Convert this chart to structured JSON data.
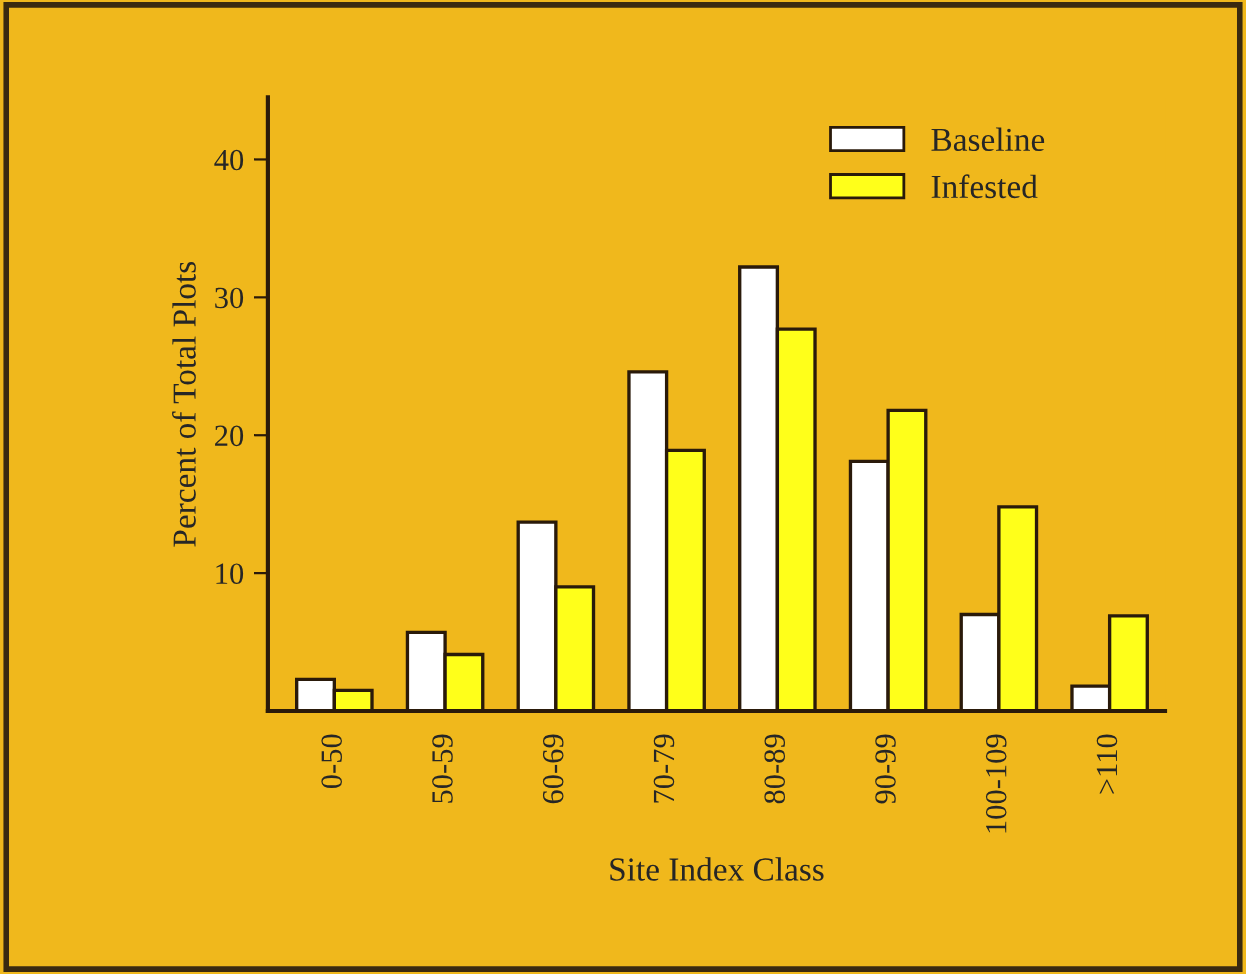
{
  "chart_data": {
    "type": "bar",
    "xlabel": "Site Index Class",
    "ylabel": "Percent of Total Plots",
    "categories": [
      "0-50",
      "50-59",
      "60-69",
      "70-79",
      "80-89",
      "90-99",
      "100-109",
      ">110"
    ],
    "series": [
      {
        "name": "Baseline",
        "color": "#ffffff",
        "values": [
          2.3,
          5.7,
          13.7,
          24.6,
          32.2,
          18.1,
          7.0,
          1.8
        ]
      },
      {
        "name": "Infested",
        "color": "#ffff1a",
        "values": [
          1.5,
          4.1,
          9.0,
          18.9,
          27.7,
          21.8,
          14.8,
          6.9
        ]
      }
    ],
    "ylim": [
      0,
      44.5
    ],
    "yticks": [
      10,
      20,
      30,
      40
    ],
    "grid": false,
    "legend": "top right"
  }
}
